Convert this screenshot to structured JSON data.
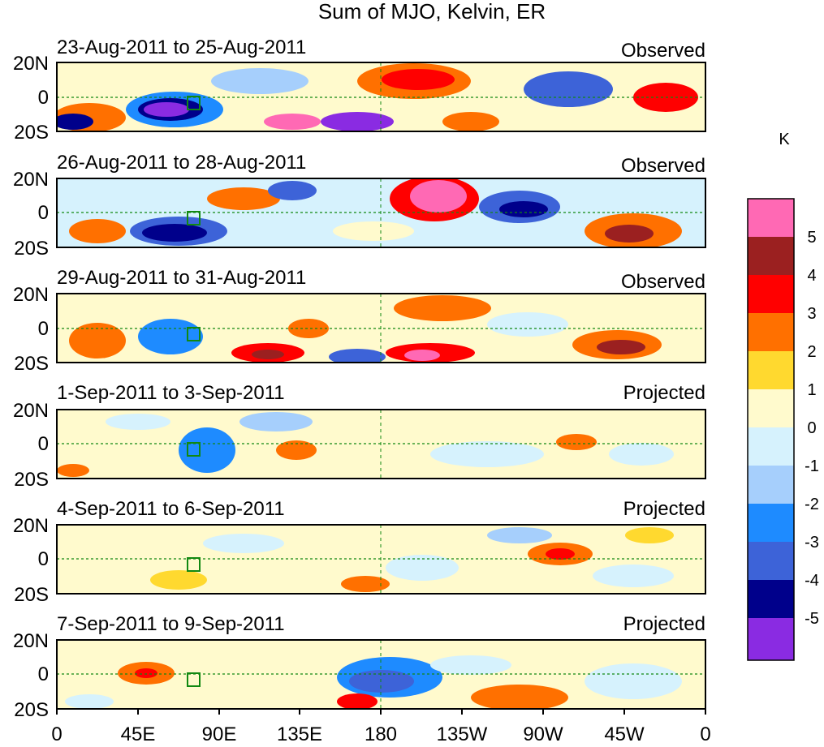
{
  "title": "Sum of MJO, Kelvin, ER",
  "colorbar": {
    "unit": "K",
    "labels": [
      "5",
      "4",
      "3",
      "2",
      "1",
      "0",
      "-1",
      "-2",
      "-3",
      "-4",
      "-5"
    ],
    "colors": [
      "#ff69b4",
      "#9b2020",
      "#ff0000",
      "#ff7000",
      "#ffd92f",
      "#fffacd",
      "#d6f2fd",
      "#a6cffc",
      "#1e8bff",
      "#3d63d8",
      "#00008b",
      "#8a2be2"
    ]
  },
  "land_color": "#118811",
  "y_ticks": [
    "20N",
    "0",
    "20S"
  ],
  "x_ticks": [
    "0",
    "45E",
    "90E",
    "135E",
    "180",
    "135W",
    "90W",
    "45W",
    "0"
  ],
  "panels": [
    {
      "dates": "23-Aug-2011 to 25-Aug-2011",
      "status": "Observed"
    },
    {
      "dates": "26-Aug-2011 to 28-Aug-2011",
      "status": "Observed"
    },
    {
      "dates": "29-Aug-2011 to 31-Aug-2011",
      "status": "Observed"
    },
    {
      "dates": "1-Sep-2011 to 3-Sep-2011",
      "status": "Projected"
    },
    {
      "dates": "4-Sep-2011 to 6-Sep-2011",
      "status": "Projected"
    },
    {
      "dates": "7-Sep-2011 to 9-Sep-2011",
      "status": "Projected"
    }
  ]
}
